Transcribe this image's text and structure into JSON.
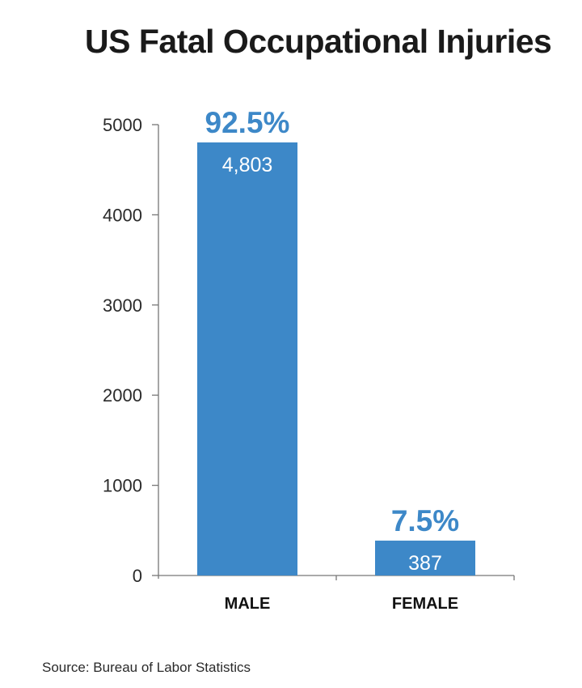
{
  "title": "US Fatal Occupational Injuries",
  "source": "Source: Bureau of Labor Statistics",
  "colors": {
    "bar": "#3d88c8",
    "percent": "#3d88c8",
    "axis": "#777777"
  },
  "chart_data": {
    "type": "bar",
    "categories": [
      "MALE",
      "FEMALE"
    ],
    "values": [
      4803,
      387
    ],
    "value_labels": [
      "4,803",
      "387"
    ],
    "percent_labels": [
      "92.5%",
      "7.5%"
    ],
    "yticks": [
      0,
      1000,
      2000,
      3000,
      4000,
      5000
    ],
    "ylim": [
      0,
      5000
    ],
    "grid": false
  }
}
